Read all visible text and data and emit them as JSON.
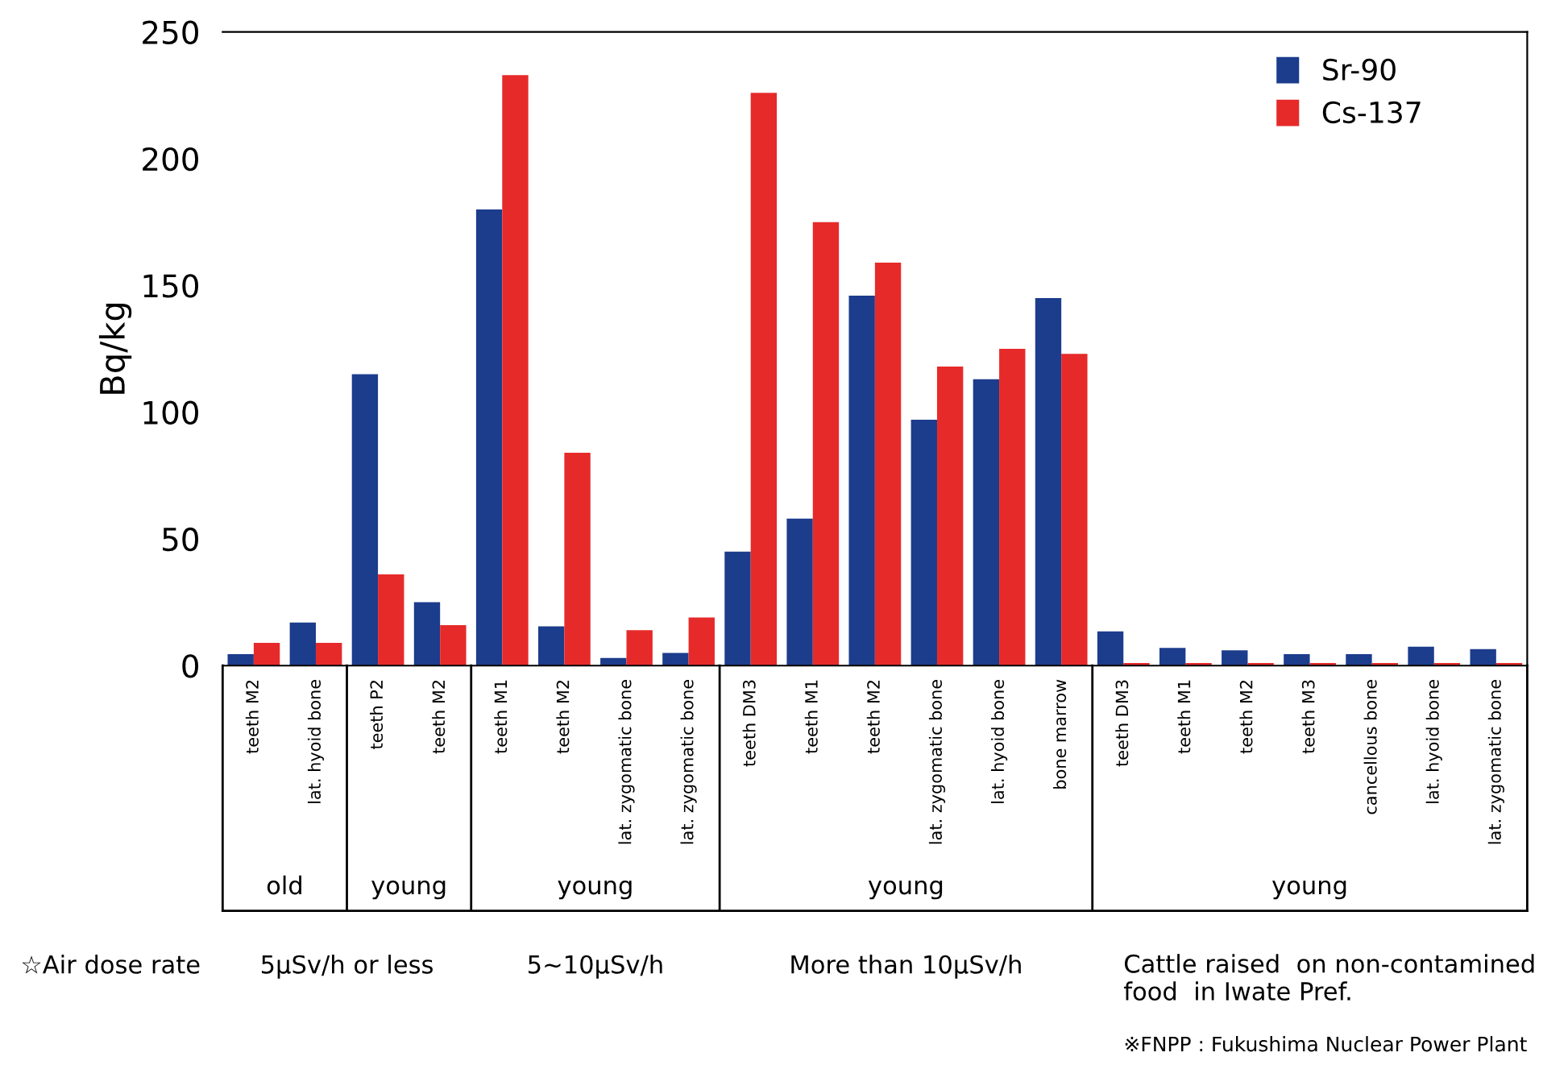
{
  "chart_data": {
    "type": "bar",
    "ylabel": "Bq/kg",
    "categories": [
      "teeth M2",
      "lat. hyoid bone",
      "teeth P2",
      "teeth M2",
      "teeth M1",
      "teeth M2",
      "lat. zygomatic bone",
      "lat. zygomatic bone",
      "teeth DM3",
      "teeth M1",
      "teeth M2",
      "lat. zygomatic bone",
      "lat. hyoid bone",
      "bone marrow",
      "teeth DM3",
      "teeth M1",
      "teeth M2",
      "teeth M3",
      "cancellous bone",
      "lat. hyoid bone",
      "lat. zygomatic bone"
    ],
    "series": [
      {
        "name": "Sr-90",
        "color": "#1c3c8c",
        "values": [
          4.5,
          17,
          115,
          25,
          180,
          15.5,
          3,
          5,
          45,
          58,
          146,
          97,
          113,
          145,
          13.5,
          7,
          6,
          4.5,
          4.5,
          7.5,
          6.5
        ]
      },
      {
        "name": "Cs-137",
        "color": "#e62a2a",
        "values": [
          9,
          9,
          36,
          16,
          233,
          84,
          14,
          19,
          226,
          175,
          159,
          118,
          125,
          123,
          1,
          1,
          1,
          1,
          1,
          1,
          1
        ]
      }
    ],
    "ylim": [
      0,
      250
    ],
    "yticks": [
      0,
      50,
      100,
      150,
      200,
      250
    ],
    "grid": false,
    "legend": "top right",
    "annotations": [
      "old",
      "young",
      "young",
      "young",
      "young",
      "☆Air dose rate",
      "5μSv/h or less",
      "5~10μSv/h",
      "More than 10μSv/h",
      "Cattle raised  on non-contamined\nfood  in Iwate Pref.",
      "※FNPP : Fukushima Nuclear Power Plant"
    ]
  }
}
